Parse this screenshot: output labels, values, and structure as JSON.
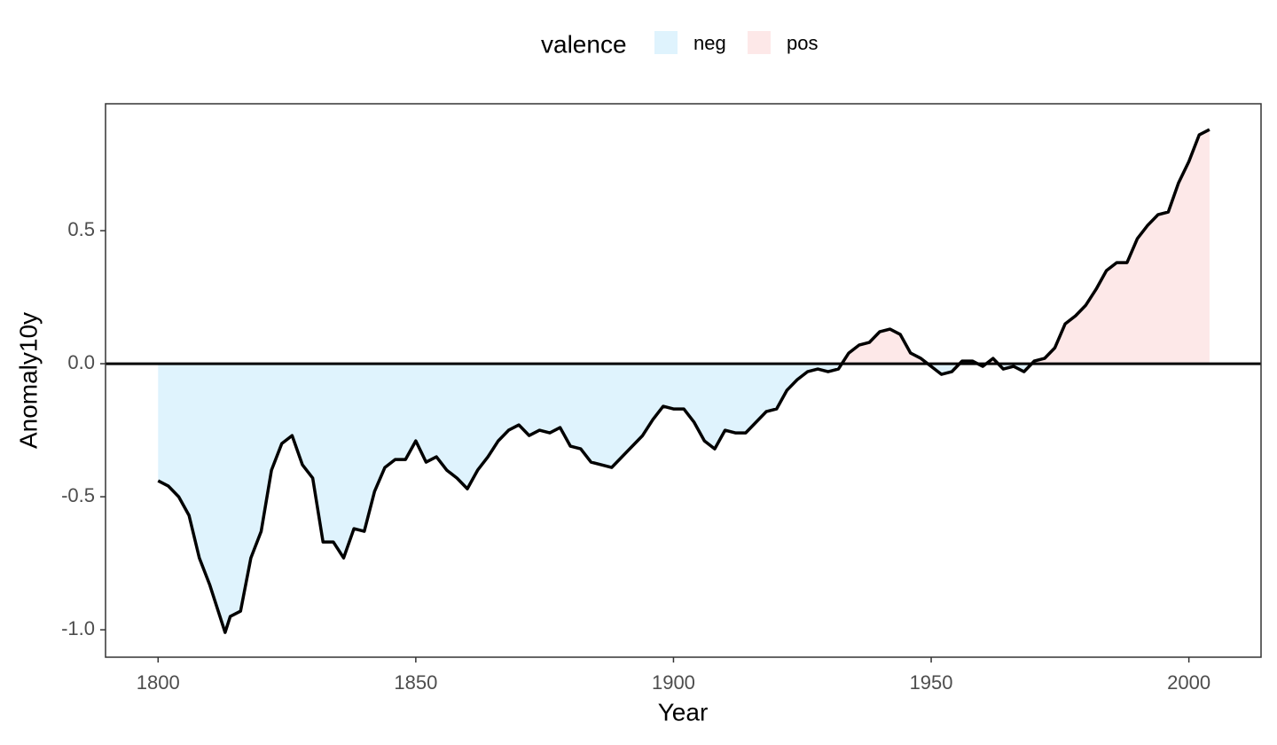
{
  "chart_data": {
    "type": "area",
    "xlabel": "Year",
    "ylabel": "Anomaly10y",
    "legend_title": "valence",
    "groups": [
      {
        "name": "neg",
        "color": "#dff3fd"
      },
      {
        "name": "pos",
        "color": "#fde8e8"
      }
    ],
    "line_color": "#000000",
    "hline": 0,
    "x": [
      1800,
      1802,
      1804,
      1806,
      1808,
      1810,
      1812,
      1813,
      1814,
      1816,
      1818,
      1820,
      1822,
      1824,
      1826,
      1828,
      1830,
      1832,
      1834,
      1836,
      1838,
      1840,
      1842,
      1844,
      1846,
      1848,
      1850,
      1852,
      1854,
      1856,
      1858,
      1860,
      1862,
      1864,
      1866,
      1868,
      1870,
      1872,
      1874,
      1876,
      1878,
      1880,
      1882,
      1884,
      1886,
      1888,
      1890,
      1892,
      1894,
      1896,
      1898,
      1900,
      1902,
      1904,
      1906,
      1908,
      1910,
      1912,
      1914,
      1916,
      1918,
      1920,
      1922,
      1924,
      1926,
      1928,
      1930,
      1932,
      1934,
      1936,
      1938,
      1940,
      1942,
      1944,
      1946,
      1948,
      1950,
      1952,
      1954,
      1956,
      1958,
      1960,
      1962,
      1964,
      1966,
      1968,
      1970,
      1972,
      1974,
      1976,
      1978,
      1980,
      1982,
      1984,
      1986,
      1988,
      1990,
      1992,
      1994,
      1996,
      1998,
      2000,
      2002,
      2004
    ],
    "values": [
      -0.44,
      -0.46,
      -0.5,
      -0.57,
      -0.73,
      -0.83,
      -0.95,
      -1.01,
      -0.95,
      -0.93,
      -0.73,
      -0.63,
      -0.4,
      -0.3,
      -0.27,
      -0.38,
      -0.43,
      -0.67,
      -0.67,
      -0.73,
      -0.62,
      -0.63,
      -0.48,
      -0.39,
      -0.36,
      -0.36,
      -0.29,
      -0.37,
      -0.35,
      -0.4,
      -0.43,
      -0.47,
      -0.4,
      -0.35,
      -0.29,
      -0.25,
      -0.23,
      -0.27,
      -0.25,
      -0.26,
      -0.24,
      -0.31,
      -0.32,
      -0.37,
      -0.38,
      -0.39,
      -0.35,
      -0.31,
      -0.27,
      -0.21,
      -0.16,
      -0.17,
      -0.17,
      -0.22,
      -0.29,
      -0.32,
      -0.25,
      -0.26,
      -0.26,
      -0.22,
      -0.18,
      -0.17,
      -0.1,
      -0.06,
      -0.03,
      -0.02,
      -0.03,
      -0.02,
      0.04,
      0.07,
      0.08,
      0.12,
      0.13,
      0.11,
      0.04,
      0.02,
      -0.01,
      -0.04,
      -0.03,
      0.01,
      0.01,
      -0.01,
      0.02,
      -0.02,
      -0.01,
      -0.03,
      0.01,
      0.02,
      0.06,
      0.15,
      0.18,
      0.22,
      0.28,
      0.35,
      0.38,
      0.38,
      0.47,
      0.52,
      0.56,
      0.57,
      0.68,
      0.76,
      0.86,
      0.88
    ],
    "xlim": [
      1789.8,
      2014.0
    ],
    "ylim": [
      -1.103,
      0.977
    ],
    "xticks": [
      1800,
      1850,
      1900,
      1950,
      2000
    ],
    "yticks": [
      {
        "value": -1.0,
        "label": "-1.0"
      },
      -0.5,
      {
        "value": 0.0,
        "label": "0.0"
      },
      0.5
    ]
  }
}
